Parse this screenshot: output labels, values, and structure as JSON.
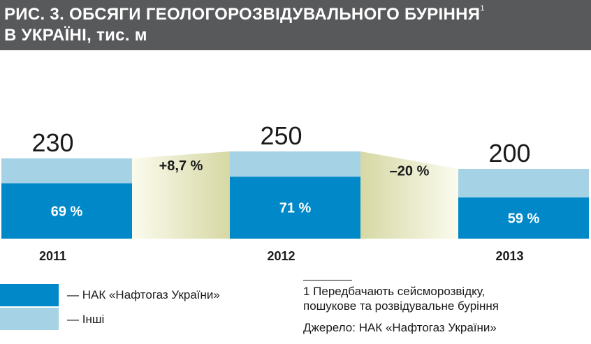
{
  "title": {
    "line1": "РИС. 3. ОБСЯГИ ГЕОЛОГОРОЗВІДУВАЛЬНОГО БУРІННЯ",
    "footnote_mark": "1",
    "line2": "В УКРАЇНІ, тис. м"
  },
  "chart_data": {
    "type": "bar",
    "stacked": true,
    "categories": [
      "2011",
      "2012",
      "2013"
    ],
    "totals": [
      230,
      250,
      200
    ],
    "total_labels": [
      "230",
      "250",
      "200"
    ],
    "series": [
      {
        "name": "НАК «Нафтогаз України»",
        "share_pct": [
          69,
          71,
          59
        ],
        "labels": [
          "69 %",
          "71 %",
          "59 %"
        ],
        "color": "#0088c8"
      },
      {
        "name": "Інші",
        "color": "#a6d2e6"
      }
    ],
    "changes": [
      "+8,7 %",
      "–20 %"
    ],
    "ylim": [
      0,
      300
    ],
    "grid": false,
    "legend_position": "bottom-left"
  },
  "legend": [
    {
      "label": "— НАК «Нафтогаз України»",
      "color": "#0088c8"
    },
    {
      "label": "— Інші",
      "color": "#a6d2e6"
    }
  ],
  "notes": {
    "footnote_line1": "1 Передбачають сейсморозвідку,",
    "footnote_line2": "пошукове та розвідувальне буріння",
    "source": "Джерело: НАК «Нафтогаз України»"
  },
  "colors": {
    "title_bg": "#58595b",
    "connector_light": "#fbfbee",
    "connector_dark": "#d6d8a4"
  }
}
